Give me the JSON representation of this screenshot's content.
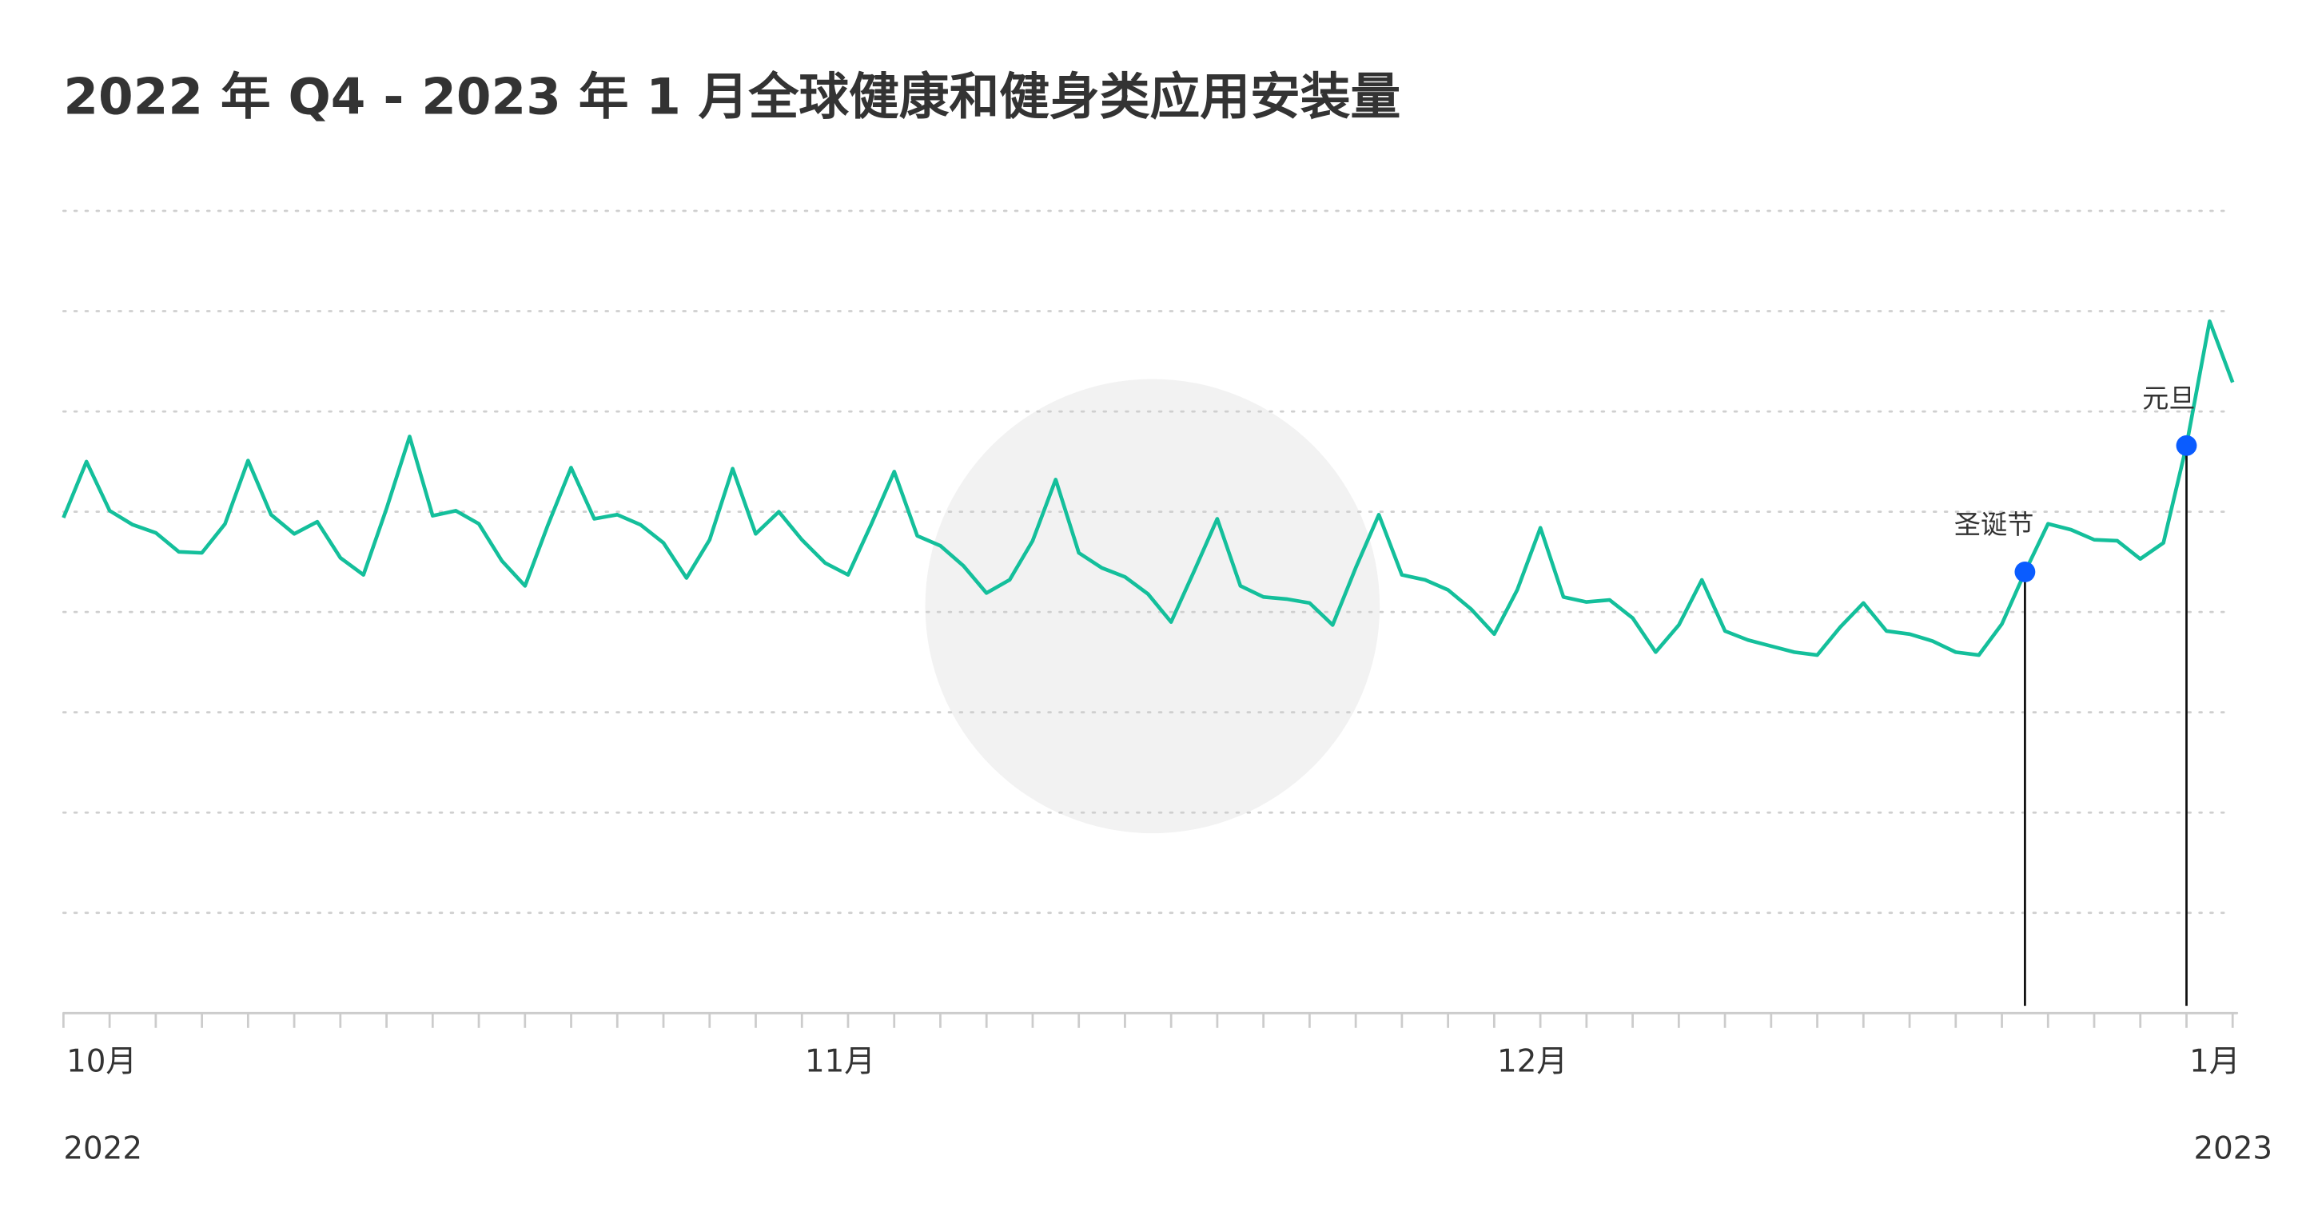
{
  "chart_data": {
    "type": "line",
    "title": "2022 年 Q4 - 2023 年 1 月全球健康和健身类应用安装量",
    "categories": [
      "10月",
      null,
      null,
      null,
      null,
      null,
      null,
      null,
      null,
      null,
      null,
      null,
      null,
      null,
      null,
      null,
      null,
      null,
      null,
      null,
      null,
      null,
      null,
      null,
      null,
      null,
      null,
      null,
      null,
      null,
      null,
      null,
      "11月",
      null,
      null,
      null,
      null,
      null,
      null,
      null,
      null,
      null,
      null,
      null,
      null,
      null,
      null,
      null,
      null,
      null,
      null,
      null,
      null,
      null,
      null,
      null,
      null,
      null,
      null,
      null,
      null,
      null,
      "12月",
      null,
      null,
      null,
      null,
      null,
      null,
      null,
      null,
      null,
      null,
      null,
      null,
      null,
      null,
      null,
      null,
      null,
      null,
      null,
      null,
      null,
      null,
      null,
      null,
      null,
      null,
      null,
      null,
      null,
      "1月",
      null,
      null
    ],
    "year_labels": [
      "2022",
      "2023"
    ],
    "series": [
      {
        "name": "安装量",
        "color": "#14bf9b",
        "values": [
          4.94,
          5.5,
          5.01,
          4.87,
          4.79,
          4.6,
          4.59,
          4.88,
          5.51,
          4.97,
          4.78,
          4.9,
          4.54,
          4.37,
          5.03,
          5.75,
          4.96,
          5.01,
          4.88,
          4.51,
          4.26,
          4.87,
          5.44,
          4.93,
          4.97,
          4.87,
          4.69,
          4.34,
          4.72,
          5.43,
          4.78,
          5.0,
          4.72,
          4.49,
          4.37,
          4.87,
          5.4,
          4.76,
          4.66,
          4.46,
          4.19,
          4.32,
          4.71,
          5.32,
          4.59,
          4.44,
          4.35,
          4.18,
          3.9,
          4.41,
          4.93,
          4.26,
          4.15,
          4.13,
          4.09,
          3.87,
          4.44,
          4.97,
          4.37,
          4.32,
          4.22,
          4.03,
          3.78,
          4.22,
          4.84,
          4.15,
          4.1,
          4.12,
          3.94,
          3.6,
          3.87,
          4.32,
          3.81,
          3.72,
          3.66,
          3.6,
          3.57,
          3.85,
          4.09,
          3.81,
          3.78,
          3.71,
          3.6,
          3.57,
          3.88,
          4.4,
          4.88,
          4.82,
          4.72,
          4.71,
          4.53,
          4.69,
          5.66,
          6.9,
          6.29
        ]
      }
    ],
    "annotations": [
      {
        "label": "圣诞节",
        "index": 85,
        "color": "#0a5cff"
      },
      {
        "label": "元旦",
        "index": 92,
        "color": "#0a5cff"
      }
    ],
    "ylim": [
      0,
      8
    ],
    "yticks": [
      0,
      1,
      2,
      3,
      4,
      5,
      6,
      7,
      8
    ],
    "show_ytick_labels": false,
    "grid": true
  }
}
